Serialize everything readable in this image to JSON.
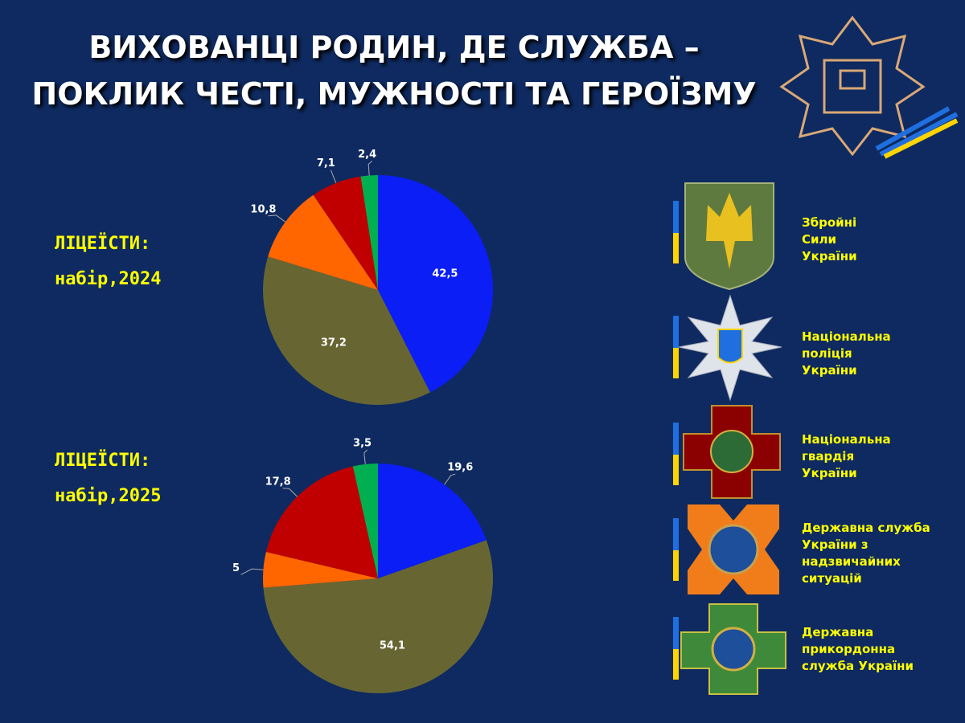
{
  "title": [
    "ВИХОВАНЦІ РОДИН, ДЕ СЛУЖБА –",
    "ПОКЛИК ЧЕСТІ, МУЖНОСТІ ТА ГЕРОЇЗМУ"
  ],
  "chart_data": [
    {
      "type": "pie",
      "label": [
        "ЛІЦЕЇСТИ:",
        "набір,2024"
      ],
      "values": [
        42.5,
        37.2,
        10.8,
        7.1,
        2.4
      ],
      "value_labels": [
        "42,5",
        "37,2",
        "10,8",
        "7,1",
        "2,4"
      ],
      "colors": [
        "#0a1ef5",
        "#676633",
        "#ff6600",
        "#c00000",
        "#00b050"
      ]
    },
    {
      "type": "pie",
      "label": [
        "ЛІЦЕЇСТИ:",
        "набір,2025"
      ],
      "values": [
        19.6,
        54.1,
        5,
        17.8,
        3.5
      ],
      "value_labels": [
        "19,6",
        "54,1",
        "5",
        "17,8",
        "3,5"
      ],
      "colors": [
        "#0a1ef5",
        "#676633",
        "#ff6600",
        "#c00000",
        "#00b050"
      ]
    }
  ],
  "services": [
    [
      "Збройні",
      "Сили",
      "України"
    ],
    [
      "Національна",
      "поліція",
      "України"
    ],
    [
      "Національна",
      "гвардія",
      "України"
    ],
    [
      "Державна служба",
      "України з",
      "надзвичайних",
      "ситуацій"
    ],
    [
      "Державна",
      "прикордонна",
      "служба України"
    ]
  ]
}
